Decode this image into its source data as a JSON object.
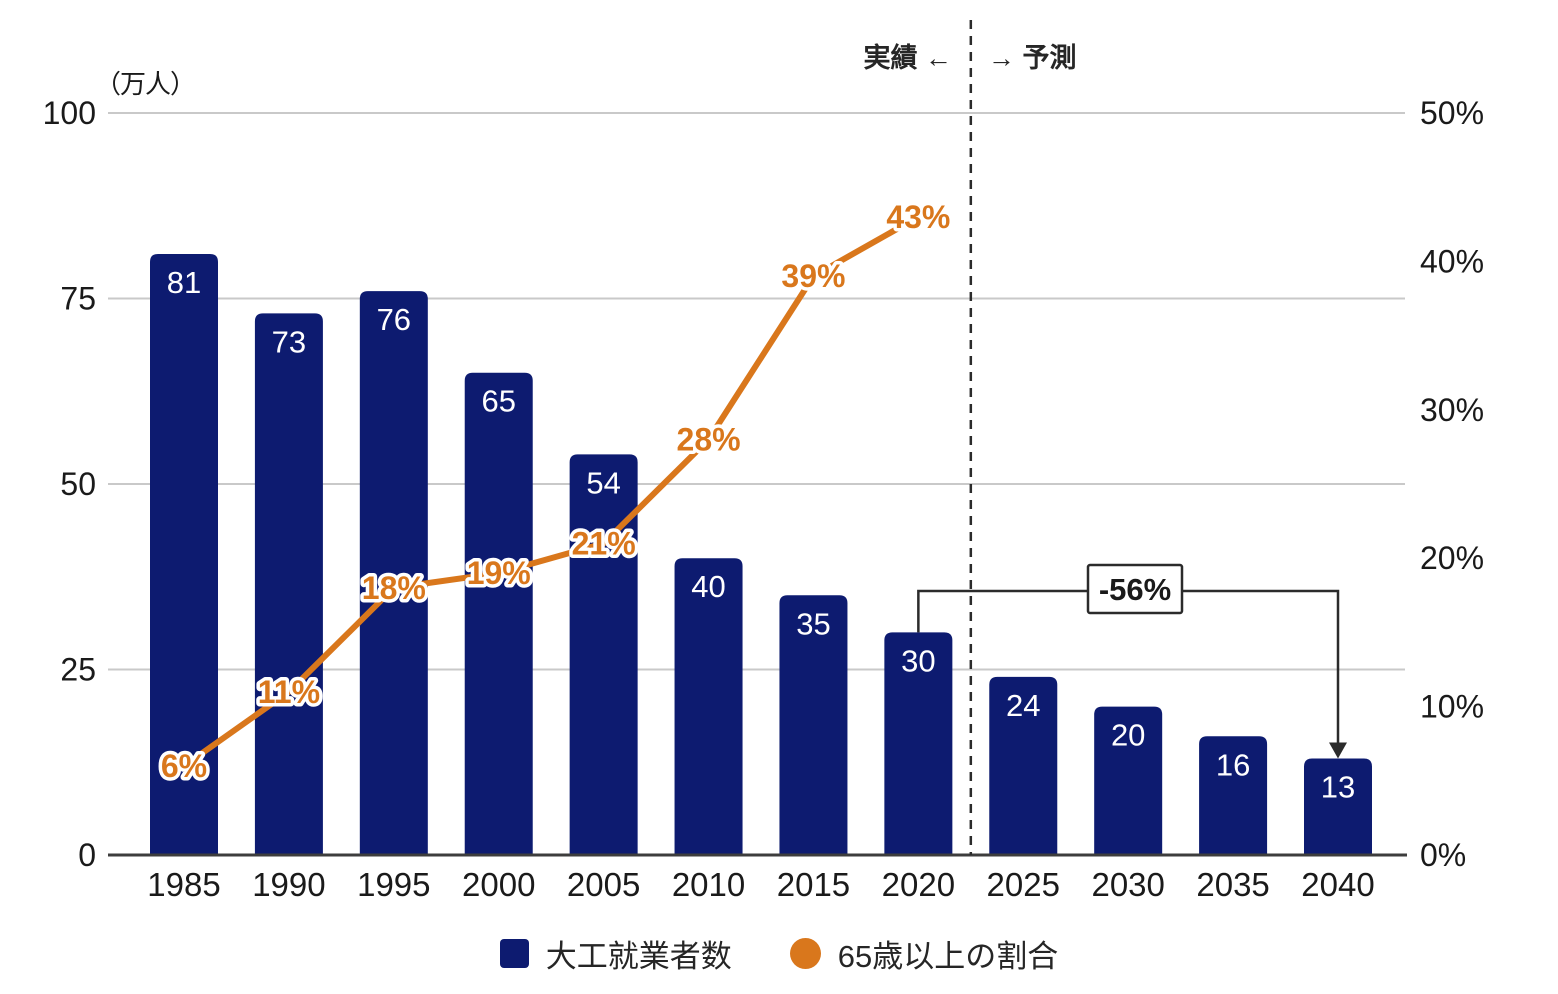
{
  "chart_data": {
    "type": "bar+line",
    "categories": [
      "1985",
      "1990",
      "1995",
      "2000",
      "2005",
      "2010",
      "2015",
      "2020",
      "2025",
      "2030",
      "2035",
      "2040"
    ],
    "series": [
      {
        "name": "大工就業者数",
        "type": "bar",
        "axis": "left",
        "unit": "万人",
        "color": "#0d1b70",
        "values": [
          81,
          73,
          76,
          65,
          54,
          40,
          35,
          30,
          24,
          20,
          16,
          13
        ]
      },
      {
        "name": "65歳以上の割合",
        "type": "line",
        "axis": "right",
        "unit": "%",
        "color": "#d9771c",
        "values": [
          6,
          11,
          18,
          19,
          21,
          28,
          39,
          43,
          null,
          null,
          null,
          null
        ],
        "point_labels": [
          "6%",
          "11%",
          "18%",
          "19%",
          "21%",
          "28%",
          "39%",
          "43%"
        ]
      }
    ],
    "left_axis": {
      "title": "（万人）",
      "min": 0,
      "max": 100,
      "ticks": [
        {
          "label": "100",
          "value": 100
        },
        {
          "label": "75",
          "value": 75
        },
        {
          "label": "50",
          "value": 50
        },
        {
          "label": "25",
          "value": 25
        },
        {
          "label": "0",
          "value": 0
        }
      ]
    },
    "right_axis": {
      "min": 0,
      "max": 50,
      "ticks": [
        {
          "label": "50%",
          "value": 50
        },
        {
          "label": "40%",
          "value": 40
        },
        {
          "label": "30%",
          "value": 30
        },
        {
          "label": "20%",
          "value": 20
        },
        {
          "label": "10%",
          "value": 10
        },
        {
          "label": "0%",
          "value": 0
        }
      ]
    },
    "divider": {
      "after_category": "2020",
      "left_label": "実績 ←",
      "right_label": "→ 予測"
    },
    "annotation": {
      "label": "-56%",
      "from_category": "2020",
      "to_category": "2040"
    },
    "grid": true,
    "legend_position": "bottom"
  },
  "colors": {
    "bar": "#0d1b70",
    "line": "#d9771c",
    "grid": "#c9c9c9",
    "axis": "#3d3d3d",
    "annotation": "#2b2b2b",
    "text": "#1a1a1a",
    "bar_label": "#ffffff"
  }
}
